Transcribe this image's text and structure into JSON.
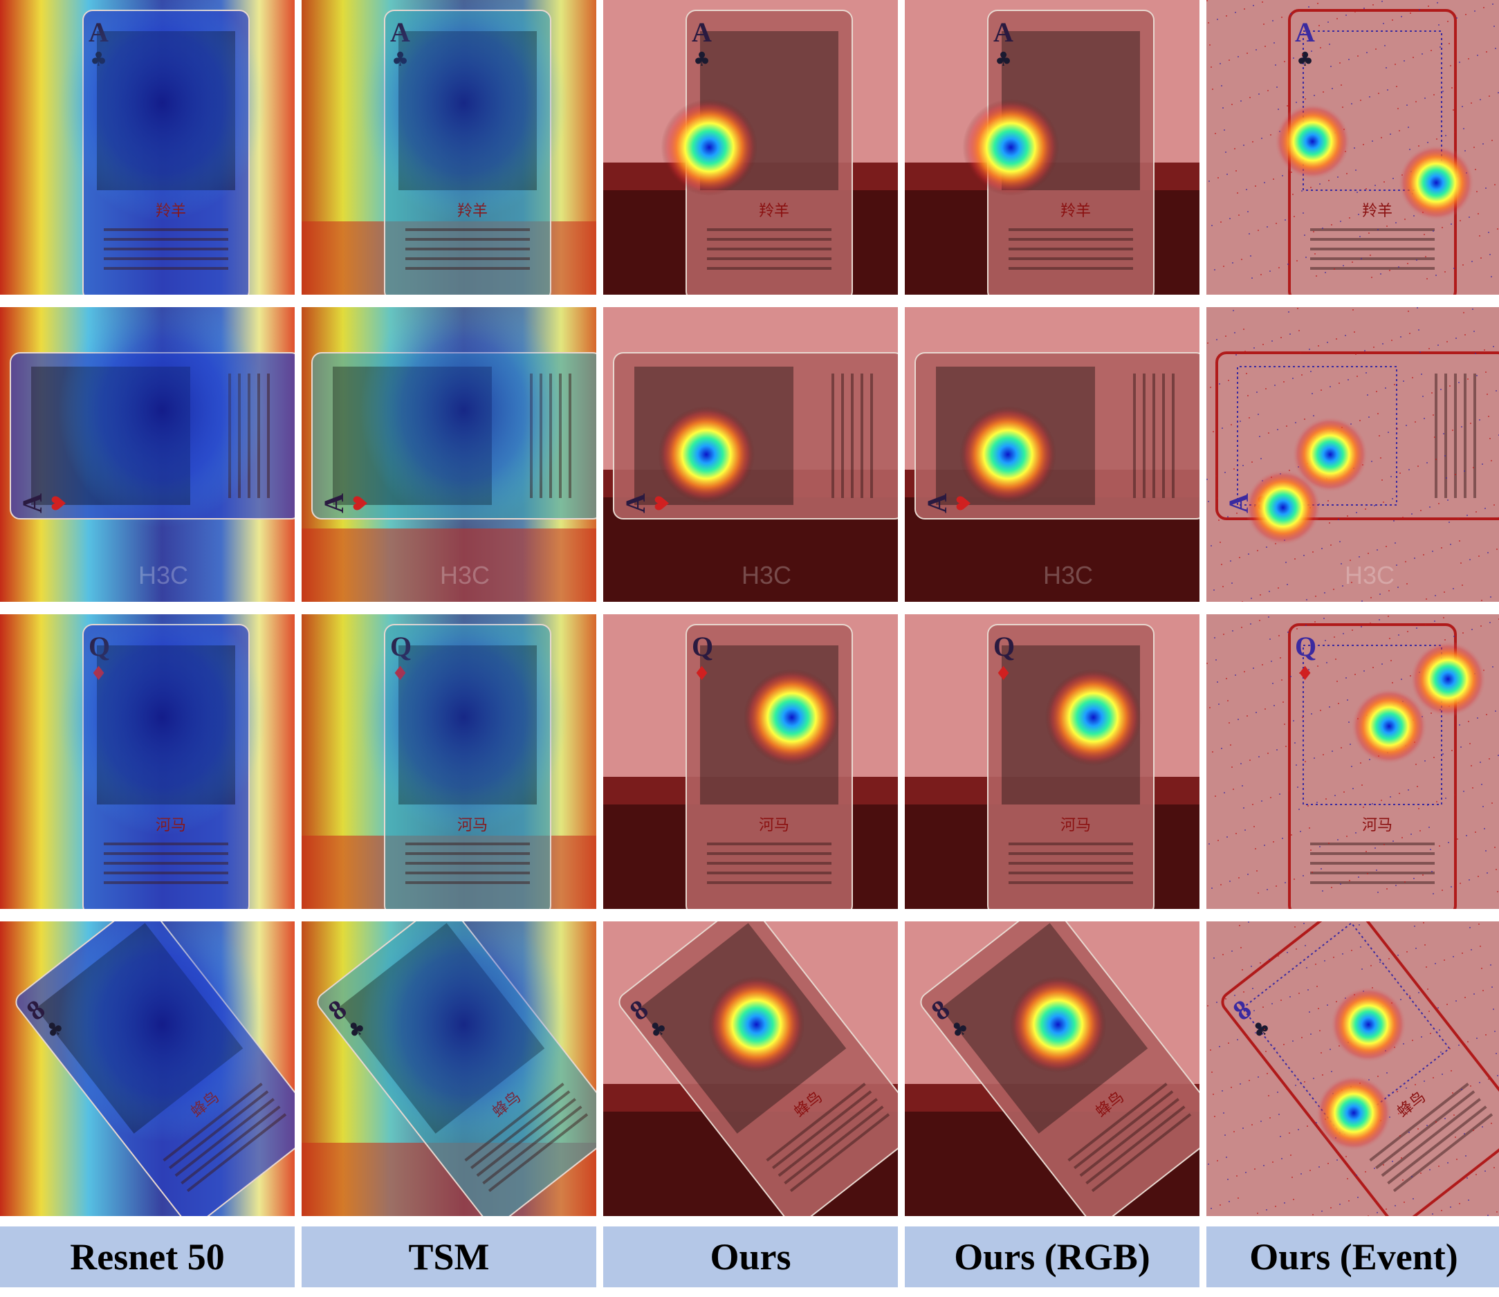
{
  "columns": [
    {
      "label": "Resnet 50",
      "style": "jet_broad"
    },
    {
      "label": "TSM",
      "style": "jet_teal"
    },
    {
      "label": "Ours",
      "style": "focal"
    },
    {
      "label": "Ours (RGB)",
      "style": "focal"
    },
    {
      "label": "Ours (Event)",
      "style": "event"
    }
  ],
  "rows": [
    {
      "card_rank": "A",
      "card_suit": "♣",
      "card_title": "羚羊",
      "card_tilt": 0,
      "focus": [
        0.36,
        0.5
      ],
      "event_focus": [
        [
          0.36,
          0.48
        ],
        [
          0.78,
          0.62
        ]
      ],
      "scene": "card",
      "brand": ""
    },
    {
      "card_rank": "A",
      "card_suit": "♥",
      "card_title": "",
      "card_tilt": -90,
      "focus": [
        0.35,
        0.5
      ],
      "event_focus": [
        [
          0.42,
          0.5
        ],
        [
          0.26,
          0.68
        ]
      ],
      "scene": "card",
      "brand": "H3C"
    },
    {
      "card_rank": "Q",
      "card_suit": "♦",
      "card_title": "河马",
      "card_tilt": 0,
      "focus": [
        0.64,
        0.35
      ],
      "event_focus": [
        [
          0.82,
          0.22
        ],
        [
          0.62,
          0.38
        ]
      ],
      "scene": "card",
      "brand": ""
    },
    {
      "card_rank": "8",
      "card_suit": "♣",
      "card_title": "蜂鸟",
      "card_tilt": -38,
      "focus": [
        0.52,
        0.35
      ],
      "event_focus": [
        [
          0.55,
          0.35
        ],
        [
          0.5,
          0.65
        ]
      ],
      "scene": "card",
      "brand": ""
    }
  ]
}
